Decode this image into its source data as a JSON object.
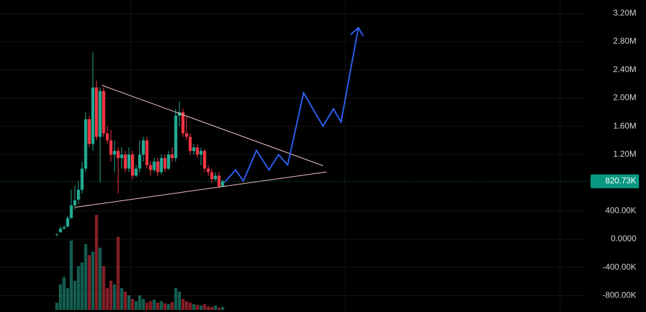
{
  "chart_data": {
    "type": "candlestick",
    "categories": [
      null,
      null,
      null,
      null,
      null,
      null,
      null,
      null,
      null,
      null,
      null,
      null,
      null,
      null,
      null,
      null,
      null,
      null,
      null,
      null,
      null,
      null,
      null,
      null,
      null,
      null,
      null,
      null,
      null,
      null,
      null,
      null,
      null,
      null,
      null,
      null,
      null,
      null,
      null,
      null,
      null,
      null,
      null,
      null,
      null,
      null,
      null
    ],
    "open": [
      60000,
      100000,
      150000,
      180000,
      300000,
      480000,
      560000,
      700000,
      1000000,
      1700000,
      1350000,
      2150000,
      1450000,
      2100000,
      1500000,
      1400000,
      1200000,
      1250000,
      1150000,
      1200000,
      1000000,
      1200000,
      900000,
      1000000,
      1200000,
      1400000,
      1050000,
      980000,
      1100000,
      950000,
      1150000,
      1000000,
      1200000,
      1150000,
      1750000,
      1800000,
      1500000,
      1450000,
      1250000,
      1300000,
      1200000,
      1250000,
      1000000,
      950000,
      850000,
      900000,
      750000
    ],
    "high": [
      80000,
      180000,
      200000,
      330000,
      700000,
      760000,
      820000,
      1100000,
      1800000,
      1750000,
      2650000,
      2250000,
      2150000,
      2150000,
      1600000,
      1550000,
      1400000,
      1300000,
      1300000,
      1250000,
      1300000,
      1250000,
      1050000,
      1400000,
      1450000,
      1450000,
      1100000,
      1150000,
      1150000,
      1200000,
      1200000,
      1250000,
      1300000,
      1850000,
      1950000,
      1850000,
      1750000,
      1500000,
      1350000,
      1350000,
      1300000,
      1280000,
      1050000,
      1000000,
      950000,
      950000,
      850000
    ],
    "low": [
      40000,
      90000,
      140000,
      170000,
      290000,
      420000,
      500000,
      650000,
      950000,
      1300000,
      1250000,
      1400000,
      800000,
      1450000,
      1350000,
      1100000,
      950000,
      650000,
      1000000,
      950000,
      950000,
      850000,
      880000,
      950000,
      1100000,
      1000000,
      900000,
      950000,
      900000,
      920000,
      950000,
      980000,
      1100000,
      1100000,
      1600000,
      1450000,
      1400000,
      1200000,
      1200000,
      1150000,
      1050000,
      950000,
      900000,
      800000,
      820000,
      720000,
      740000
    ],
    "close": [
      70000,
      150000,
      170000,
      300000,
      480000,
      550000,
      700000,
      1000000,
      1700000,
      1350000,
      2150000,
      1450000,
      2100000,
      1500000,
      1400000,
      1200000,
      1250000,
      1150000,
      1200000,
      1000000,
      1200000,
      900000,
      1000000,
      1200000,
      1400000,
      1050000,
      980000,
      1100000,
      950000,
      1150000,
      1000000,
      1200000,
      1150000,
      1750000,
      1800000,
      1500000,
      1450000,
      1250000,
      1300000,
      1200000,
      1250000,
      1000000,
      950000,
      850000,
      900000,
      750000,
      820730
    ],
    "volume": [
      10,
      35,
      45,
      30,
      95,
      40,
      60,
      65,
      90,
      75,
      80,
      130,
      85,
      60,
      30,
      40,
      35,
      100,
      30,
      25,
      20,
      15,
      12,
      20,
      15,
      10,
      12,
      14,
      10,
      12,
      9,
      8,
      11,
      30,
      25,
      15,
      12,
      10,
      8,
      7,
      6,
      8,
      5,
      4,
      6,
      3,
      4
    ],
    "up_color": "#22ab94",
    "down_color": "#f23645",
    "ylim": [
      -1032000,
      3390000
    ],
    "yticks": [
      {
        "value": 3200000,
        "label": "3.20M"
      },
      {
        "value": 2800000,
        "label": "2.80M"
      },
      {
        "value": 2400000,
        "label": "2.40M"
      },
      {
        "value": 2000000,
        "label": "2.00M"
      },
      {
        "value": 1600000,
        "label": "1.60M"
      },
      {
        "value": 1200000,
        "label": "1.20M"
      },
      {
        "value": 400000,
        "label": "400.00K"
      },
      {
        "value": 0,
        "label": "0.0000"
      },
      {
        "value": -400000,
        "label": "-400.00K"
      },
      {
        "value": -800000,
        "label": "-800.00K"
      }
    ],
    "last_price": {
      "value": 820730,
      "label": "820.73K"
    },
    "grid": true
  }
}
